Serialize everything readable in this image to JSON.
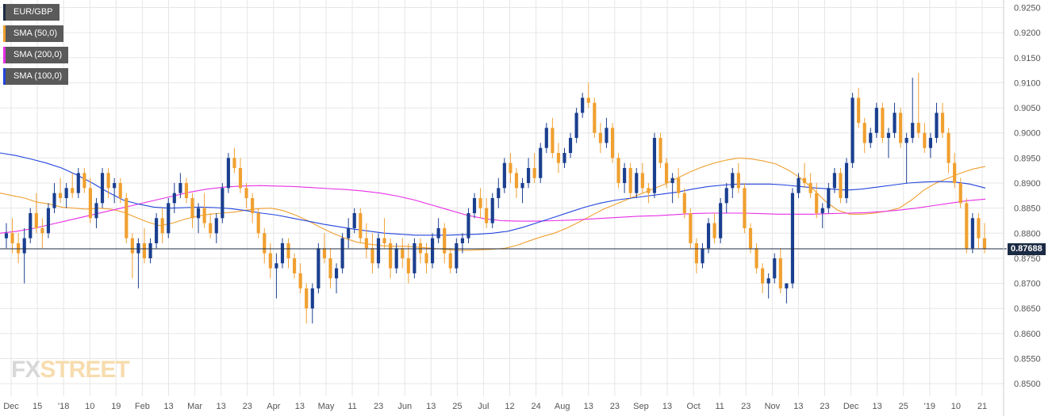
{
  "colors": {
    "bull": "#1a3f8f",
    "bear": "#f0a030",
    "sma50": "#f0a030",
    "sma200": "#e62ee6",
    "sma100": "#2244dd",
    "last_line": "#1c2b44",
    "logo_fx": "#d8d8d8",
    "logo_street": "#f7dcae"
  },
  "legend": [
    {
      "label": "EUR/GBP",
      "color": "#1c2b44"
    },
    {
      "label": "SMA (50,0)",
      "color": "#f0a030"
    },
    {
      "label": "SMA (200,0)",
      "color": "#e62ee6"
    },
    {
      "label": "SMA (100,0)",
      "color": "#2244dd"
    }
  ],
  "logo": {
    "part1": "FX",
    "part2": "STREET"
  },
  "last_price_label": "0.87688",
  "chart_data": {
    "type": "candlestick",
    "pair": "EUR/GBP",
    "timeframe": "daily",
    "ylim": [
      0.8475,
      0.9265
    ],
    "y_ticks": [
      "0.9250",
      "0.9200",
      "0.9150",
      "0.9100",
      "0.9050",
      "0.9000",
      "0.8950",
      "0.8900",
      "0.8850",
      "0.8800",
      "0.8750",
      "0.8700",
      "0.8650",
      "0.8600",
      "0.8550",
      "0.8500"
    ],
    "x_ticks": [
      "Dec",
      "15",
      "'18",
      "10",
      "19",
      "Feb",
      "13",
      "Mar",
      "13",
      "23",
      "Apr",
      "13",
      "May",
      "11",
      "23",
      "Jun",
      "13",
      "25",
      "Jul",
      "12",
      "24",
      "Aug",
      "13",
      "23",
      "Sep",
      "13",
      "Oct",
      "11",
      "23",
      "Nov",
      "13",
      "23",
      "Dec",
      "13",
      "25",
      "'19",
      "10",
      "21"
    ],
    "last_price": 0.87688,
    "grid": true,
    "candles": [
      [
        0.879,
        0.882,
        0.877,
        0.88
      ],
      [
        0.88,
        0.883,
        0.876,
        0.878
      ],
      [
        0.878,
        0.88,
        0.874,
        0.876
      ],
      [
        0.876,
        0.881,
        0.87,
        0.879
      ],
      [
        0.879,
        0.885,
        0.878,
        0.884
      ],
      [
        0.884,
        0.888,
        0.88,
        0.881
      ],
      [
        0.881,
        0.883,
        0.877,
        0.88
      ],
      [
        0.88,
        0.886,
        0.879,
        0.885
      ],
      [
        0.885,
        0.89,
        0.884,
        0.888
      ],
      [
        0.888,
        0.891,
        0.886,
        0.887
      ],
      [
        0.887,
        0.89,
        0.885,
        0.889
      ],
      [
        0.889,
        0.892,
        0.887,
        0.888
      ],
      [
        0.888,
        0.893,
        0.887,
        0.892
      ],
      [
        0.892,
        0.893,
        0.888,
        0.889
      ],
      [
        0.889,
        0.891,
        0.882,
        0.883
      ],
      [
        0.883,
        0.887,
        0.881,
        0.886
      ],
      [
        0.886,
        0.893,
        0.885,
        0.892
      ],
      [
        0.892,
        0.893,
        0.887,
        0.889
      ],
      [
        0.889,
        0.891,
        0.886,
        0.89
      ],
      [
        0.89,
        0.891,
        0.886,
        0.887
      ],
      [
        0.887,
        0.888,
        0.878,
        0.879
      ],
      [
        0.879,
        0.88,
        0.871,
        0.876
      ],
      [
        0.876,
        0.879,
        0.869,
        0.878
      ],
      [
        0.878,
        0.881,
        0.874,
        0.875
      ],
      [
        0.875,
        0.879,
        0.874,
        0.878
      ],
      [
        0.878,
        0.884,
        0.877,
        0.883
      ],
      [
        0.883,
        0.885,
        0.878,
        0.88
      ],
      [
        0.88,
        0.887,
        0.879,
        0.886
      ],
      [
        0.886,
        0.89,
        0.884,
        0.888
      ],
      [
        0.888,
        0.892,
        0.887,
        0.89
      ],
      [
        0.89,
        0.891,
        0.886,
        0.887
      ],
      [
        0.887,
        0.888,
        0.881,
        0.883
      ],
      [
        0.883,
        0.886,
        0.88,
        0.885
      ],
      [
        0.885,
        0.888,
        0.881,
        0.882
      ],
      [
        0.882,
        0.884,
        0.879,
        0.88
      ],
      [
        0.88,
        0.884,
        0.878,
        0.883
      ],
      [
        0.883,
        0.89,
        0.882,
        0.889
      ],
      [
        0.889,
        0.896,
        0.888,
        0.895
      ],
      [
        0.895,
        0.897,
        0.892,
        0.893
      ],
      [
        0.893,
        0.895,
        0.888,
        0.889
      ],
      [
        0.889,
        0.89,
        0.885,
        0.887
      ],
      [
        0.887,
        0.888,
        0.882,
        0.884
      ],
      [
        0.884,
        0.885,
        0.879,
        0.88
      ],
      [
        0.88,
        0.881,
        0.874,
        0.876
      ],
      [
        0.876,
        0.878,
        0.871,
        0.873
      ],
      [
        0.873,
        0.876,
        0.867,
        0.874
      ],
      [
        0.874,
        0.879,
        0.873,
        0.878
      ],
      [
        0.878,
        0.879,
        0.873,
        0.875
      ],
      [
        0.875,
        0.876,
        0.871,
        0.872
      ],
      [
        0.872,
        0.874,
        0.868,
        0.869
      ],
      [
        0.869,
        0.87,
        0.862,
        0.865
      ],
      [
        0.865,
        0.87,
        0.862,
        0.869
      ],
      [
        0.869,
        0.878,
        0.868,
        0.877
      ],
      [
        0.877,
        0.88,
        0.874,
        0.875
      ],
      [
        0.875,
        0.877,
        0.869,
        0.871
      ],
      [
        0.871,
        0.874,
        0.868,
        0.873
      ],
      [
        0.873,
        0.88,
        0.872,
        0.879
      ],
      [
        0.879,
        0.883,
        0.877,
        0.881
      ],
      [
        0.881,
        0.885,
        0.88,
        0.884
      ],
      [
        0.884,
        0.885,
        0.878,
        0.879
      ],
      [
        0.879,
        0.882,
        0.875,
        0.877
      ],
      [
        0.877,
        0.88,
        0.872,
        0.874
      ],
      [
        0.874,
        0.88,
        0.873,
        0.879
      ],
      [
        0.879,
        0.883,
        0.877,
        0.878
      ],
      [
        0.878,
        0.879,
        0.871,
        0.873
      ],
      [
        0.873,
        0.878,
        0.872,
        0.877
      ],
      [
        0.877,
        0.879,
        0.873,
        0.875
      ],
      [
        0.875,
        0.878,
        0.87,
        0.872
      ],
      [
        0.872,
        0.879,
        0.871,
        0.878
      ],
      [
        0.878,
        0.879,
        0.874,
        0.876
      ],
      [
        0.876,
        0.878,
        0.872,
        0.874
      ],
      [
        0.874,
        0.88,
        0.873,
        0.879
      ],
      [
        0.879,
        0.883,
        0.878,
        0.881
      ],
      [
        0.881,
        0.882,
        0.874,
        0.876
      ],
      [
        0.876,
        0.877,
        0.872,
        0.873
      ],
      [
        0.873,
        0.879,
        0.872,
        0.878
      ],
      [
        0.878,
        0.88,
        0.876,
        0.879
      ],
      [
        0.879,
        0.885,
        0.878,
        0.884
      ],
      [
        0.884,
        0.888,
        0.883,
        0.887
      ],
      [
        0.887,
        0.889,
        0.883,
        0.885
      ],
      [
        0.885,
        0.887,
        0.881,
        0.882
      ],
      [
        0.882,
        0.888,
        0.881,
        0.887
      ],
      [
        0.887,
        0.891,
        0.885,
        0.889
      ],
      [
        0.889,
        0.895,
        0.888,
        0.894
      ],
      [
        0.894,
        0.896,
        0.89,
        0.892
      ],
      [
        0.892,
        0.893,
        0.887,
        0.889
      ],
      [
        0.889,
        0.891,
        0.886,
        0.89
      ],
      [
        0.89,
        0.895,
        0.889,
        0.893
      ],
      [
        0.893,
        0.896,
        0.89,
        0.891
      ],
      [
        0.891,
        0.898,
        0.89,
        0.897
      ],
      [
        0.897,
        0.902,
        0.896,
        0.901
      ],
      [
        0.901,
        0.903,
        0.895,
        0.896
      ],
      [
        0.896,
        0.898,
        0.892,
        0.894
      ],
      [
        0.894,
        0.897,
        0.893,
        0.896
      ],
      [
        0.896,
        0.9,
        0.895,
        0.899
      ],
      [
        0.899,
        0.905,
        0.898,
        0.904
      ],
      [
        0.904,
        0.908,
        0.903,
        0.907
      ],
      [
        0.907,
        0.91,
        0.905,
        0.906
      ],
      [
        0.906,
        0.907,
        0.899,
        0.9
      ],
      [
        0.9,
        0.902,
        0.896,
        0.898
      ],
      [
        0.898,
        0.903,
        0.897,
        0.901
      ],
      [
        0.901,
        0.902,
        0.894,
        0.895
      ],
      [
        0.895,
        0.896,
        0.889,
        0.89
      ],
      [
        0.89,
        0.894,
        0.888,
        0.893
      ],
      [
        0.893,
        0.894,
        0.887,
        0.888
      ],
      [
        0.888,
        0.893,
        0.887,
        0.892
      ],
      [
        0.892,
        0.894,
        0.888,
        0.889
      ],
      [
        0.889,
        0.89,
        0.886,
        0.888
      ],
      [
        0.888,
        0.9,
        0.887,
        0.899
      ],
      [
        0.899,
        0.9,
        0.893,
        0.894
      ],
      [
        0.894,
        0.895,
        0.889,
        0.89
      ],
      [
        0.89,
        0.892,
        0.886,
        0.891
      ],
      [
        0.891,
        0.893,
        0.887,
        0.888
      ],
      [
        0.888,
        0.889,
        0.883,
        0.884
      ],
      [
        0.884,
        0.885,
        0.877,
        0.878
      ],
      [
        0.878,
        0.879,
        0.872,
        0.874
      ],
      [
        0.874,
        0.878,
        0.873,
        0.877
      ],
      [
        0.877,
        0.883,
        0.876,
        0.882
      ],
      [
        0.882,
        0.884,
        0.878,
        0.879
      ],
      [
        0.879,
        0.887,
        0.878,
        0.886
      ],
      [
        0.886,
        0.89,
        0.884,
        0.889
      ],
      [
        0.889,
        0.893,
        0.887,
        0.892
      ],
      [
        0.892,
        0.894,
        0.888,
        0.889
      ],
      [
        0.889,
        0.89,
        0.88,
        0.881
      ],
      [
        0.881,
        0.882,
        0.876,
        0.877
      ],
      [
        0.877,
        0.878,
        0.872,
        0.873
      ],
      [
        0.873,
        0.874,
        0.868,
        0.87
      ],
      [
        0.87,
        0.872,
        0.867,
        0.871
      ],
      [
        0.871,
        0.876,
        0.87,
        0.875
      ],
      [
        0.875,
        0.877,
        0.868,
        0.869
      ],
      [
        0.869,
        0.87,
        0.866,
        0.87
      ],
      [
        0.87,
        0.889,
        0.869,
        0.888
      ],
      [
        0.888,
        0.892,
        0.887,
        0.891
      ],
      [
        0.891,
        0.894,
        0.889,
        0.89
      ],
      [
        0.89,
        0.892,
        0.887,
        0.888
      ],
      [
        0.888,
        0.89,
        0.883,
        0.884
      ],
      [
        0.884,
        0.886,
        0.881,
        0.885
      ],
      [
        0.885,
        0.89,
        0.884,
        0.889
      ],
      [
        0.889,
        0.893,
        0.888,
        0.892
      ],
      [
        0.892,
        0.893,
        0.886,
        0.887
      ],
      [
        0.887,
        0.895,
        0.886,
        0.894
      ],
      [
        0.894,
        0.908,
        0.893,
        0.907
      ],
      [
        0.907,
        0.909,
        0.901,
        0.902
      ],
      [
        0.902,
        0.903,
        0.896,
        0.898
      ],
      [
        0.898,
        0.901,
        0.897,
        0.9
      ],
      [
        0.9,
        0.906,
        0.899,
        0.905
      ],
      [
        0.905,
        0.906,
        0.898,
        0.899
      ],
      [
        0.899,
        0.901,
        0.895,
        0.9
      ],
      [
        0.9,
        0.906,
        0.899,
        0.904
      ],
      [
        0.904,
        0.905,
        0.897,
        0.898
      ],
      [
        0.898,
        0.9,
        0.89,
        0.899
      ],
      [
        0.899,
        0.911,
        0.898,
        0.902
      ],
      [
        0.902,
        0.912,
        0.899,
        0.9
      ],
      [
        0.9,
        0.902,
        0.896,
        0.897
      ],
      [
        0.897,
        0.9,
        0.895,
        0.899
      ],
      [
        0.899,
        0.906,
        0.898,
        0.904
      ],
      [
        0.904,
        0.906,
        0.899,
        0.9
      ],
      [
        0.9,
        0.901,
        0.892,
        0.894
      ],
      [
        0.894,
        0.896,
        0.889,
        0.89
      ],
      [
        0.89,
        0.891,
        0.885,
        0.886
      ],
      [
        0.886,
        0.887,
        0.876,
        0.877
      ],
      [
        0.877,
        0.884,
        0.876,
        0.883
      ],
      [
        0.883,
        0.884,
        0.877,
        0.879
      ],
      [
        0.879,
        0.882,
        0.876,
        0.8769
      ]
    ],
    "series": [
      {
        "name": "SMA (50,0)",
        "color": "#f0a030",
        "values": [
          0.888,
          0.8875,
          0.887,
          0.8862,
          0.8858,
          0.8852,
          0.885,
          0.8848,
          0.885,
          0.8848,
          0.8842,
          0.8832,
          0.8822,
          0.8815,
          0.882,
          0.8828,
          0.8834,
          0.8838,
          0.884,
          0.8842,
          0.8846,
          0.8849,
          0.885,
          0.8845,
          0.8836,
          0.8825,
          0.8812,
          0.88,
          0.879,
          0.8782,
          0.8778,
          0.8775,
          0.8774,
          0.8774,
          0.8772,
          0.877,
          0.8768,
          0.8766,
          0.8766,
          0.8767,
          0.8768,
          0.877,
          0.8776,
          0.8785,
          0.8793,
          0.88,
          0.881,
          0.8822,
          0.8835,
          0.8848,
          0.8858,
          0.8868,
          0.8878,
          0.8888,
          0.8898,
          0.891,
          0.8922,
          0.8932,
          0.894,
          0.8946,
          0.895,
          0.8948,
          0.8944,
          0.8938,
          0.8926,
          0.891,
          0.8888,
          0.8864,
          0.8846,
          0.8838,
          0.8838,
          0.884,
          0.8844,
          0.885,
          0.8866,
          0.8886,
          0.89,
          0.891,
          0.892,
          0.8928,
          0.8933
        ]
      },
      {
        "name": "SMA (200,0)",
        "color": "#e62ee6",
        "values": [
          0.88,
          0.8804,
          0.881,
          0.8818,
          0.8826,
          0.8834,
          0.8842,
          0.885,
          0.8858,
          0.8866,
          0.8874,
          0.8882,
          0.8888,
          0.8892,
          0.8894,
          0.8895,
          0.8894,
          0.8893,
          0.8891,
          0.8889,
          0.8887,
          0.8884,
          0.888,
          0.8874,
          0.8866,
          0.8856,
          0.8846,
          0.8836,
          0.8829,
          0.8825,
          0.8824,
          0.8824,
          0.8825,
          0.8826,
          0.8828,
          0.883,
          0.8832,
          0.8834,
          0.8835,
          0.8837,
          0.8839,
          0.884,
          0.884,
          0.884,
          0.8839,
          0.8838,
          0.8838,
          0.8838,
          0.8839,
          0.884,
          0.8841,
          0.8843,
          0.8846,
          0.885,
          0.8855,
          0.886,
          0.8865,
          0.8868
        ]
      },
      {
        "name": "SMA (100,0)",
        "color": "#2244dd",
        "values": [
          0.896,
          0.8955,
          0.8948,
          0.894,
          0.893,
          0.8916,
          0.89,
          0.8882,
          0.8866,
          0.8858,
          0.8852,
          0.885,
          0.8851,
          0.8852,
          0.8851,
          0.8849,
          0.8845,
          0.884,
          0.8836,
          0.883,
          0.8824,
          0.8818,
          0.8813,
          0.8808,
          0.8804,
          0.88,
          0.8798,
          0.8796,
          0.8796,
          0.8796,
          0.8797,
          0.8798,
          0.88,
          0.8804,
          0.8812,
          0.8822,
          0.8832,
          0.8842,
          0.8852,
          0.886,
          0.8866,
          0.887,
          0.8874,
          0.8878,
          0.8882,
          0.8888,
          0.8893,
          0.8896,
          0.8898,
          0.8898,
          0.8898,
          0.8896,
          0.8893,
          0.889,
          0.8888,
          0.8886,
          0.8888,
          0.8892,
          0.8896,
          0.89,
          0.8902,
          0.8903,
          0.8902,
          0.8898,
          0.889
        ]
      }
    ]
  }
}
